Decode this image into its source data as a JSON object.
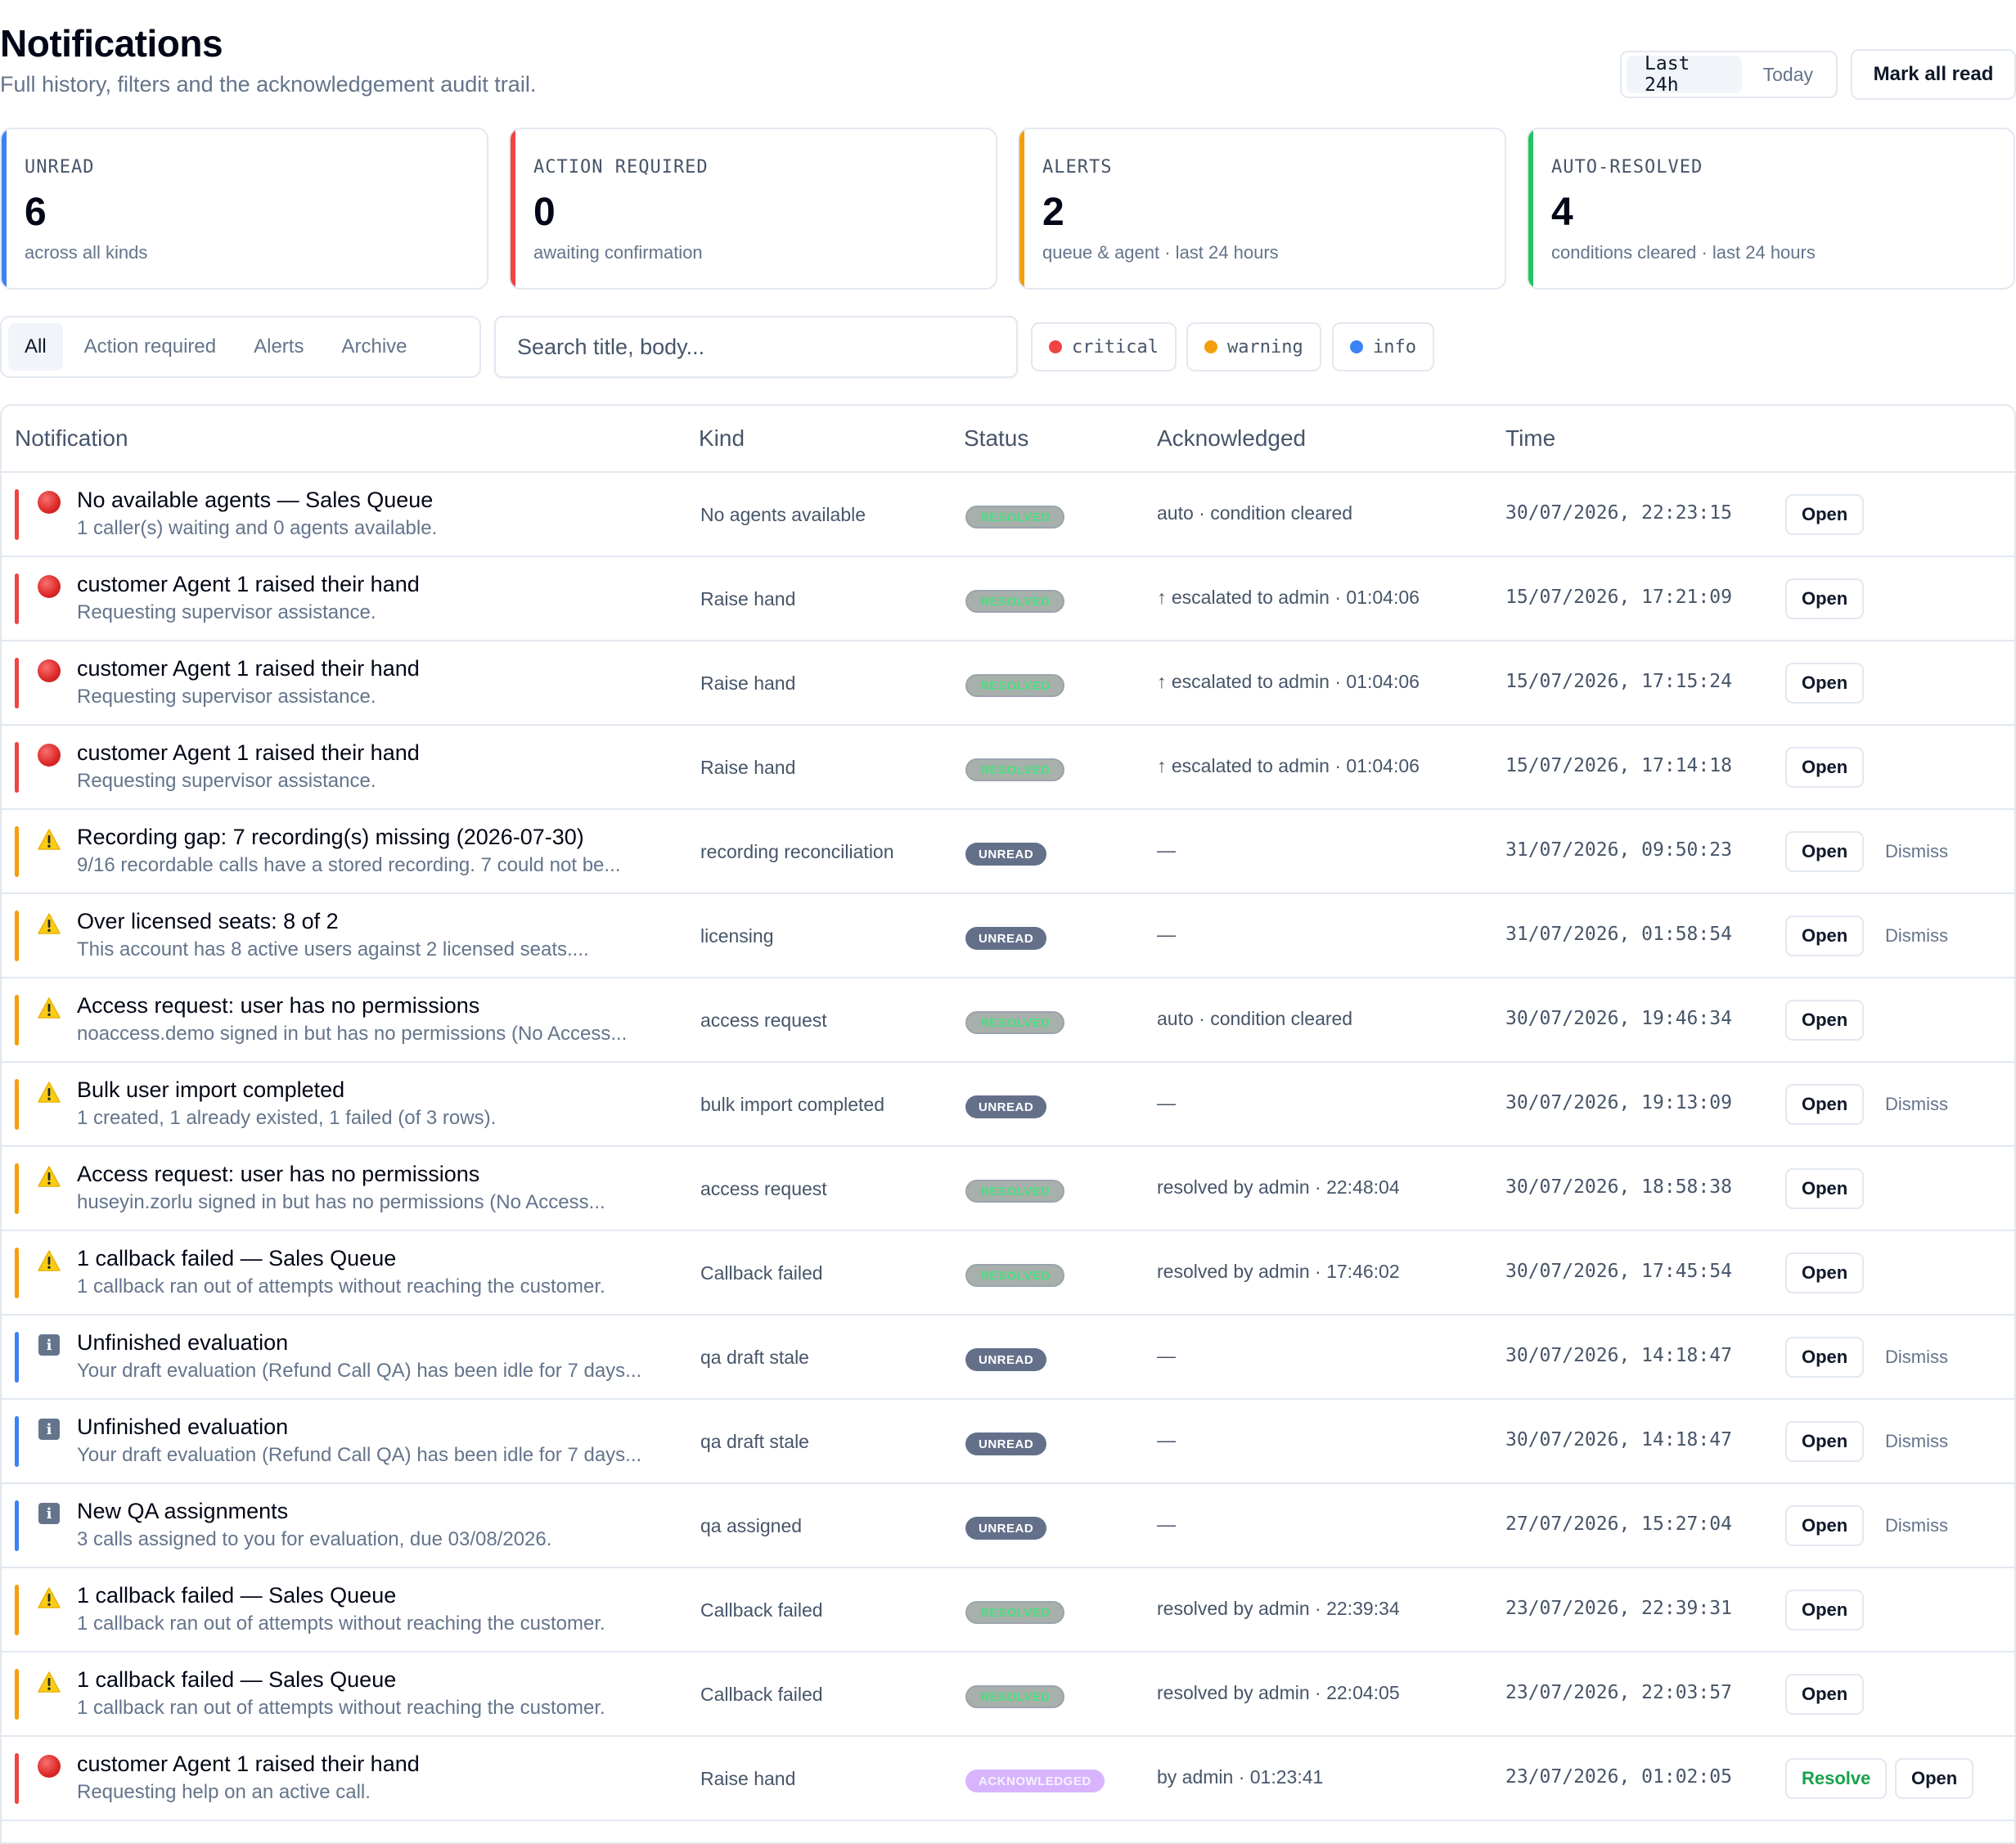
{
  "header": {
    "title": "Notifications",
    "subtitle": "Full history, filters and the acknowledgement audit trail.",
    "range_options": [
      "Last 24h",
      "Today"
    ],
    "range_selected": "Last 24h",
    "mark_all_read_label": "Mark all read"
  },
  "stats": [
    {
      "label": "UNREAD",
      "value": "6",
      "sub": "across all kinds",
      "color": "#3b82f6"
    },
    {
      "label": "ACTION REQUIRED",
      "value": "0",
      "sub": "awaiting confirmation",
      "color": "#ef4444"
    },
    {
      "label": "ALERTS",
      "value": "2",
      "sub": "queue & agent · last 24 hours",
      "color": "#f59e0b"
    },
    {
      "label": "AUTO-RESOLVED",
      "value": "4",
      "sub": "conditions cleared · last 24 hours",
      "color": "#22c55e"
    }
  ],
  "filters": {
    "tabs": [
      "All",
      "Action required",
      "Alerts",
      "Archive"
    ],
    "active_tab": "All",
    "search_placeholder": "Search title, body...",
    "severities": [
      {
        "label": "critical",
        "color": "#ef4444"
      },
      {
        "label": "warning",
        "color": "#f59e0b"
      },
      {
        "label": "info",
        "color": "#3b82f6"
      }
    ]
  },
  "table": {
    "columns": [
      "Notification",
      "Kind",
      "Status",
      "Acknowledged",
      "Time"
    ],
    "open_label": "Open",
    "dismiss_label": "Dismiss",
    "resolve_label": "Resolve",
    "severity_colors": {
      "critical": "#ef4444",
      "warning": "#f59e0b",
      "info": "#3b82f6"
    },
    "rows": [
      {
        "severity": "critical",
        "title": "No available agents — Sales Queue",
        "body": "1 caller(s) waiting and 0 agents available.",
        "kind": "No agents available",
        "status": "RESOLVED",
        "ack": "auto · condition cleared",
        "time": "30/07/2026, 22:23:15",
        "dismiss": false,
        "resolve": false
      },
      {
        "severity": "critical",
        "title": "customer Agent 1 raised their hand",
        "body": "Requesting supervisor assistance.",
        "kind": "Raise hand",
        "status": "RESOLVED",
        "ack": "↑ escalated to admin · 01:04:06",
        "time": "15/07/2026, 17:21:09",
        "dismiss": false,
        "resolve": false
      },
      {
        "severity": "critical",
        "title": "customer Agent 1 raised their hand",
        "body": "Requesting supervisor assistance.",
        "kind": "Raise hand",
        "status": "RESOLVED",
        "ack": "↑ escalated to admin · 01:04:06",
        "time": "15/07/2026, 17:15:24",
        "dismiss": false,
        "resolve": false
      },
      {
        "severity": "critical",
        "title": "customer Agent 1 raised their hand",
        "body": "Requesting supervisor assistance.",
        "kind": "Raise hand",
        "status": "RESOLVED",
        "ack": "↑ escalated to admin · 01:04:06",
        "time": "15/07/2026, 17:14:18",
        "dismiss": false,
        "resolve": false
      },
      {
        "severity": "warning",
        "title": "Recording gap: 7 recording(s) missing (2026-07-30)",
        "body": "9/16 recordable calls have a stored recording. 7 could not be...",
        "kind": "recording reconciliation",
        "status": "UNREAD",
        "ack": "—",
        "time": "31/07/2026, 09:50:23",
        "dismiss": true,
        "resolve": false
      },
      {
        "severity": "warning",
        "title": "Over licensed seats: 8 of 2",
        "body": "This account has 8 active users against 2 licensed seats....",
        "kind": "licensing",
        "status": "UNREAD",
        "ack": "—",
        "time": "31/07/2026, 01:58:54",
        "dismiss": true,
        "resolve": false
      },
      {
        "severity": "warning",
        "title": "Access request: user has no permissions",
        "body": "noaccess.demo signed in but has no permissions (No Access...",
        "kind": "access request",
        "status": "RESOLVED",
        "ack": "auto · condition cleared",
        "time": "30/07/2026, 19:46:34",
        "dismiss": false,
        "resolve": false
      },
      {
        "severity": "warning",
        "title": "Bulk user import completed",
        "body": "1 created, 1 already existed, 1 failed (of 3 rows).",
        "kind": "bulk import completed",
        "status": "UNREAD",
        "ack": "—",
        "time": "30/07/2026, 19:13:09",
        "dismiss": true,
        "resolve": false
      },
      {
        "severity": "warning",
        "title": "Access request: user has no permissions",
        "body": "huseyin.zorlu signed in but has no permissions (No Access...",
        "kind": "access request",
        "status": "RESOLVED",
        "ack": "resolved by admin · 22:48:04",
        "time": "30/07/2026, 18:58:38",
        "dismiss": false,
        "resolve": false
      },
      {
        "severity": "warning",
        "title": "1 callback failed — Sales Queue",
        "body": "1 callback ran out of attempts without reaching the customer.",
        "kind": "Callback failed",
        "status": "RESOLVED",
        "ack": "resolved by admin · 17:46:02",
        "time": "30/07/2026, 17:45:54",
        "dismiss": false,
        "resolve": false
      },
      {
        "severity": "info",
        "title": "Unfinished evaluation",
        "body": "Your draft evaluation (Refund Call QA) has been idle for 7 days...",
        "kind": "qa draft stale",
        "status": "UNREAD",
        "ack": "—",
        "time": "30/07/2026, 14:18:47",
        "dismiss": true,
        "resolve": false
      },
      {
        "severity": "info",
        "title": "Unfinished evaluation",
        "body": "Your draft evaluation (Refund Call QA) has been idle for 7 days...",
        "kind": "qa draft stale",
        "status": "UNREAD",
        "ack": "—",
        "time": "30/07/2026, 14:18:47",
        "dismiss": true,
        "resolve": false
      },
      {
        "severity": "info",
        "title": "New QA assignments",
        "body": "3 calls assigned to you for evaluation, due 03/08/2026.",
        "kind": "qa assigned",
        "status": "UNREAD",
        "ack": "—",
        "time": "27/07/2026, 15:27:04",
        "dismiss": true,
        "resolve": false
      },
      {
        "severity": "warning",
        "title": "1 callback failed — Sales Queue",
        "body": "1 callback ran out of attempts without reaching the customer.",
        "kind": "Callback failed",
        "status": "RESOLVED",
        "ack": "resolved by admin · 22:39:34",
        "time": "23/07/2026, 22:39:31",
        "dismiss": false,
        "resolve": false
      },
      {
        "severity": "warning",
        "title": "1 callback failed — Sales Queue",
        "body": "1 callback ran out of attempts without reaching the customer.",
        "kind": "Callback failed",
        "status": "RESOLVED",
        "ack": "resolved by admin · 22:04:05",
        "time": "23/07/2026, 22:03:57",
        "dismiss": false,
        "resolve": false
      },
      {
        "severity": "critical",
        "title": "customer Agent 1 raised their hand",
        "body": "Requesting help on an active call.",
        "kind": "Raise hand",
        "status": "ACKNOWLEDGED",
        "ack": "by admin · 01:23:41",
        "time": "23/07/2026, 01:02:05",
        "dismiss": false,
        "resolve": true
      }
    ]
  }
}
